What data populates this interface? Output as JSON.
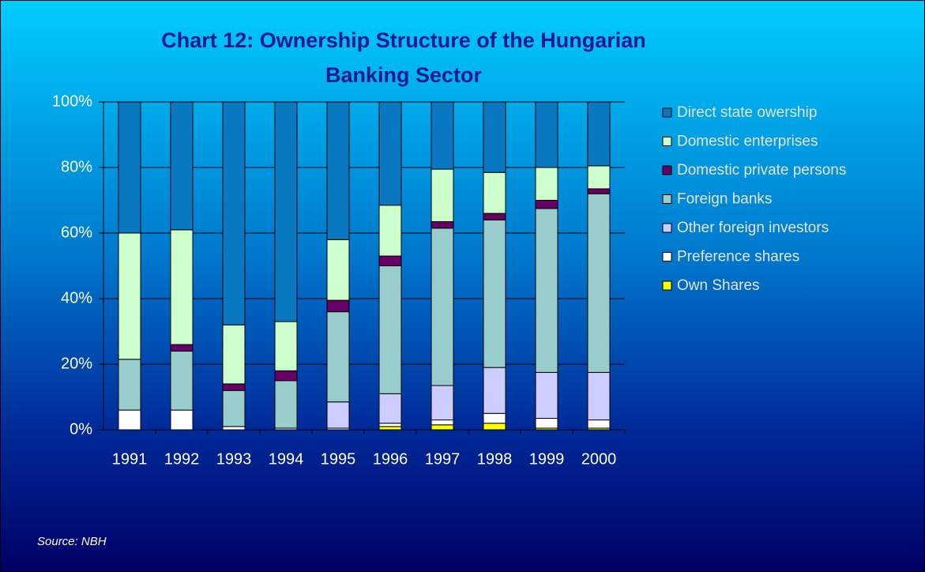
{
  "chart_data": {
    "type": "stacked_bar",
    "title": "Chart 12: Ownership Structure of the Hungarian Banking Sector",
    "source": "Source:  NBH",
    "categories": [
      "1991",
      "1992",
      "1993",
      "1994",
      "1995",
      "1996",
      "1997",
      "1998",
      "1999",
      "2000"
    ],
    "series": [
      {
        "name": "Own Shares",
        "color": "#ffff00",
        "values": [
          0,
          0,
          0,
          0,
          0,
          1,
          1.5,
          2,
          0.5,
          0.5
        ]
      },
      {
        "name": "Preference shares",
        "color": "#ffffff",
        "values": [
          6,
          6,
          1,
          0.5,
          0.5,
          1,
          1.5,
          3,
          3,
          2.5
        ]
      },
      {
        "name": "Other foreign investors",
        "color": "#ccccff",
        "values": [
          0,
          0,
          0,
          0,
          8,
          9,
          10.5,
          14,
          14,
          14.5
        ]
      },
      {
        "name": "Foreign banks",
        "color": "#99cccc",
        "values": [
          15.5,
          18,
          11,
          14.5,
          27.5,
          39,
          48,
          45,
          50,
          54.5
        ]
      },
      {
        "name": "Domestic private persons",
        "color": "#660066",
        "values": [
          0,
          2,
          2,
          3,
          3.5,
          3,
          2,
          2,
          2.5,
          1.5
        ]
      },
      {
        "name": "Domestic enterprises",
        "color": "#ccffcc",
        "values": [
          38.5,
          35,
          18,
          15,
          18.5,
          15.5,
          16,
          12.5,
          10,
          7
        ]
      },
      {
        "name": "Direct state owership",
        "color": "#0a78c0",
        "values": [
          40,
          39,
          68,
          67,
          42,
          31.5,
          20.5,
          21.5,
          20,
          19.5
        ]
      }
    ],
    "ylim": [
      0,
      100
    ],
    "yticks": [
      {
        "value": 0,
        "label": "0%"
      },
      {
        "value": 20,
        "label": "20%"
      },
      {
        "value": 40,
        "label": "40%"
      },
      {
        "value": 60,
        "label": "60%"
      },
      {
        "value": 80,
        "label": "80%"
      },
      {
        "value": 100,
        "label": "100%"
      }
    ],
    "grid": true
  }
}
